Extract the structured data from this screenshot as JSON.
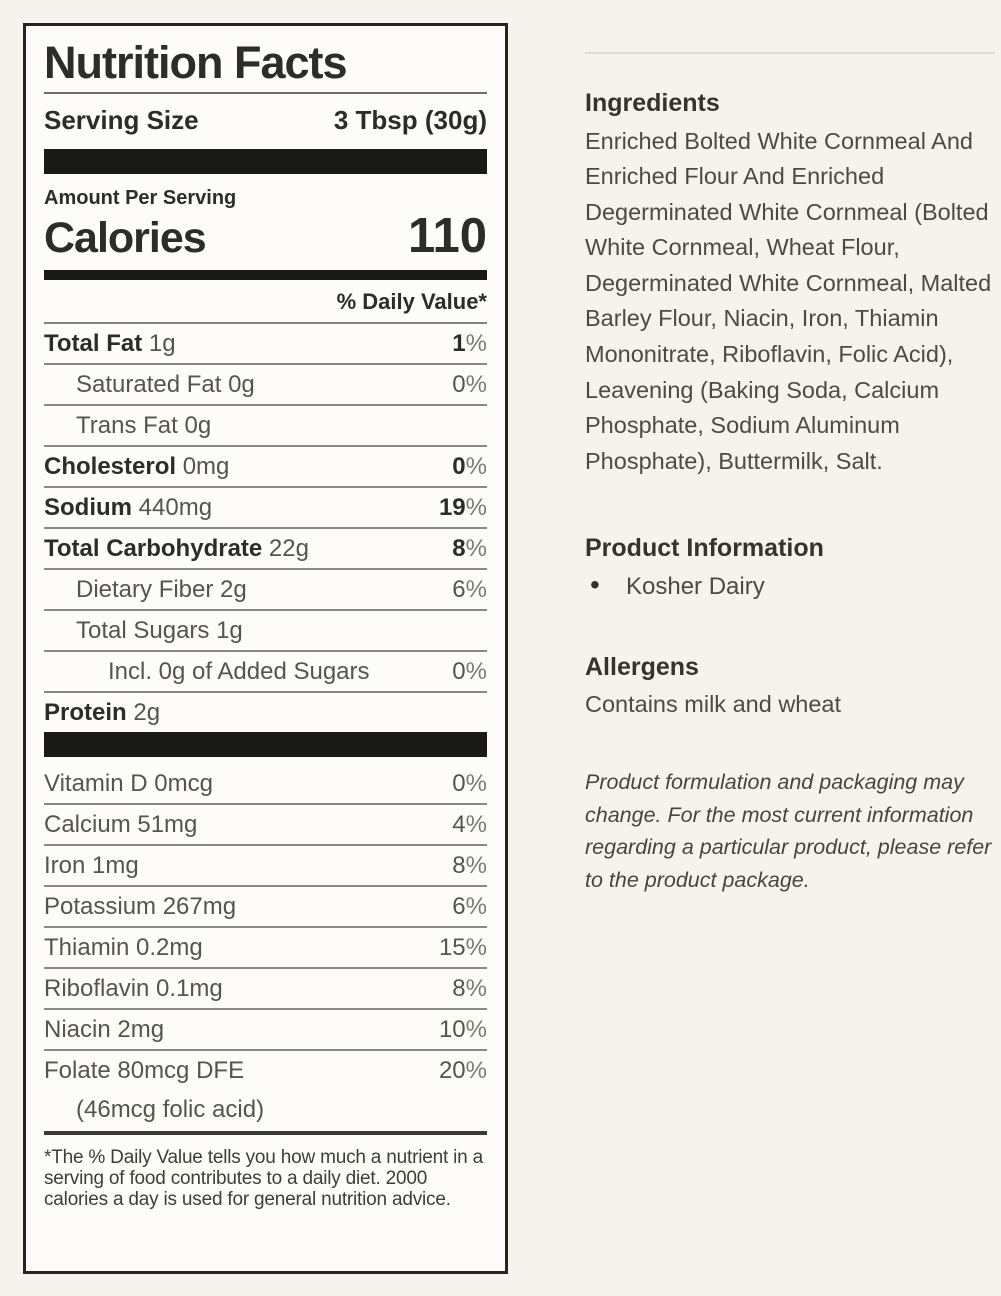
{
  "label": {
    "title": "Nutrition Facts",
    "serving_size_label": "Serving Size",
    "serving_size_value": "3 Tbsp (30g)",
    "amount_per_serving": "Amount Per Serving",
    "calories_label": "Calories",
    "calories_value": "110",
    "daily_value_header": "% Daily Value*",
    "rows": [
      {
        "name": "Total Fat",
        "amount": "1g",
        "pct": "1",
        "bold": true,
        "indent": 0
      },
      {
        "name": "Saturated Fat",
        "amount": "0g",
        "pct": "0",
        "bold": false,
        "indent": 1
      },
      {
        "name": "Trans Fat",
        "amount": "0g",
        "pct": "",
        "bold": false,
        "indent": 1
      },
      {
        "name": "Cholesterol",
        "amount": "0mg",
        "pct": "0",
        "bold": true,
        "indent": 0
      },
      {
        "name": "Sodium",
        "amount": "440mg",
        "pct": "19",
        "bold": true,
        "indent": 0
      },
      {
        "name": "Total Carbohydrate",
        "amount": "22g",
        "pct": "8",
        "bold": true,
        "indent": 0
      },
      {
        "name": "Dietary Fiber",
        "amount": "2g",
        "pct": "6",
        "bold": false,
        "indent": 1
      },
      {
        "name": "Total Sugars",
        "amount": "1g",
        "pct": "",
        "bold": false,
        "indent": 1
      },
      {
        "name": "Incl. 0g of Added Sugars",
        "amount": "",
        "pct": "0",
        "bold": false,
        "indent": 2
      },
      {
        "name": "Protein",
        "amount": "2g",
        "pct": "",
        "bold": true,
        "indent": 0
      }
    ],
    "vitamins": [
      {
        "name": "Vitamin D 0mcg",
        "pct": "0",
        "indent": 0
      },
      {
        "name": "Calcium 51mg",
        "pct": "4",
        "indent": 0
      },
      {
        "name": "Iron 1mg",
        "pct": "8",
        "indent": 0
      },
      {
        "name": "Potassium 267mg",
        "pct": "6",
        "indent": 0
      },
      {
        "name": "Thiamin 0.2mg",
        "pct": "15",
        "indent": 0
      },
      {
        "name": "Riboflavin 0.1mg",
        "pct": "8",
        "indent": 0
      },
      {
        "name": "Niacin 2mg",
        "pct": "10",
        "indent": 0
      },
      {
        "name": "Folate 80mcg DFE",
        "pct": "20",
        "indent": 0
      },
      {
        "name": "(46mcg folic acid)",
        "pct": "",
        "indent": 1
      }
    ],
    "footnote": "*The % Daily Value tells you how much a nutrient in a serving of food contributes to a daily diet. 2000 calories a day is used for general nutrition advice."
  },
  "info": {
    "ingredients_title": "Ingredients",
    "ingredients_text": "Enriched Bolted White Cornmeal And Enriched Flour And Enriched Degerminated White Cornmeal (Bolted White Cornmeal, Wheat Flour, Degerminated White Cornmeal, Malted Barley Flour, Niacin, Iron, Thiamin Mononitrate, Riboflavin, Folic Acid), Leavening (Baking Soda, Calcium Phosphate, Sodium Aluminum Phosphate), Buttermilk, Salt.",
    "product_info_title": "Product Information",
    "product_info_items": [
      "Kosher Dairy"
    ],
    "allergens_title": "Allergens",
    "allergens_text": "Contains milk and wheat",
    "disclaimer": "Product formulation and packaging may change. For the most current information regarding a particular product, please refer to the product package."
  },
  "colors": {
    "page_background": "#f6f3ec",
    "label_background": "#fdfcf8",
    "label_border": "#262421",
    "bold_text": "#2e2c28",
    "body_text": "#4c4a43",
    "thick_bar": "#191918",
    "hairline": "#8a887f"
  }
}
